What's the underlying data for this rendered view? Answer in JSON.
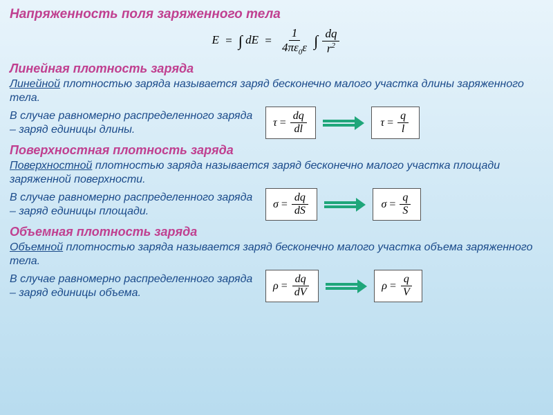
{
  "title": "Напряженность поля заряженного тела",
  "mainFormula": {
    "lhs": "E",
    "int1": "dE",
    "coef_num": "1",
    "coef_den_a": "4πε",
    "coef_den_sub": "0",
    "coef_den_b": "ε",
    "int2_num": "dq",
    "int2_den": "r",
    "int2_den_sup": "2"
  },
  "sections": [
    {
      "heading": "Линейная плотность заряда",
      "underlined": "Линейной",
      "afterUnderline": " плотностью заряда  называется заряд бесконечно малого участка длины заряженного тела.",
      "subText": "В случае равномерно распределенного заряда – заряд единицы длины.",
      "f1": {
        "lhs": "τ",
        "num": "dq",
        "den": "dl"
      },
      "f2": {
        "lhs": "τ",
        "num": "q",
        "den": "l"
      }
    },
    {
      "heading": "Поверхностная плотность заряда",
      "underlined": "Поверхностной",
      "afterUnderline": " плотностью заряда  называется заряд бесконечно малого участка площади заряженной поверхности.",
      "subText": "В случае равномерно распределенного заряда – заряд единицы площади.",
      "f1": {
        "lhs": "σ",
        "num": "dq",
        "den": "dS"
      },
      "f2": {
        "lhs": "σ",
        "num": "q",
        "den": "S"
      }
    },
    {
      "heading": "Объемная плотность заряда",
      "underlined": "Объемной",
      "afterUnderline": " плотностью заряда  называется заряд бесконечно малого участка объема заряженного тела.",
      "subText": "В случае равномерно распределенного заряда – заряд единицы объема.",
      "f1": {
        "lhs": "ρ",
        "num": "dq",
        "den": "dV"
      },
      "f2": {
        "lhs": "ρ",
        "num": "q",
        "den": "V"
      }
    }
  ],
  "colors": {
    "heading": "#c04090",
    "body": "#1a4a8a",
    "arrow": "#1fa67a",
    "bg_top": "#e8f4fb",
    "bg_bottom": "#b8dcef"
  }
}
